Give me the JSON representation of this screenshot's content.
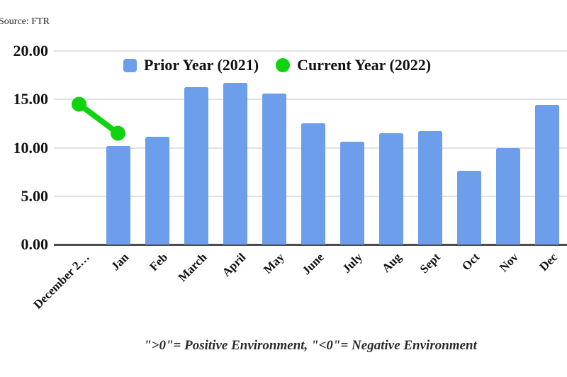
{
  "source_note": "Source: FTR",
  "legend": {
    "prior_label": "Prior Year (2021)",
    "current_label": "Current Year (2022)"
  },
  "caption": "\">0\"= Positive Environment, \"<0\"= Negative Environment",
  "colors": {
    "bar_blue": "#6d9eeb",
    "line_green": "#0fd30f",
    "gridline": "#e2e2e2",
    "axis_line": "#4c4c4c",
    "text": "#111111"
  },
  "chart_data": {
    "type": "bar",
    "title": "",
    "xlabel": "",
    "ylabel": "",
    "categories": [
      "December 2…",
      "Jan",
      "Feb",
      "March",
      "April",
      "May",
      "June",
      "July",
      "Aug",
      "Sept",
      "Oct",
      "Nov",
      "Dec"
    ],
    "series": [
      {
        "name": "Prior Year (2021)",
        "type": "bar",
        "color": "#6d9eeb",
        "values": [
          null,
          10.2,
          11.1,
          16.3,
          16.7,
          15.6,
          12.5,
          10.6,
          11.5,
          11.7,
          7.6,
          10.0,
          14.4
        ]
      },
      {
        "name": "Current Year (2022)",
        "type": "line",
        "color": "#0fd30f",
        "values": [
          14.5,
          11.5,
          null,
          null,
          null,
          null,
          null,
          null,
          null,
          null,
          null,
          null,
          null
        ]
      }
    ],
    "y_ticks": [
      {
        "value": 20,
        "label": "20.00"
      },
      {
        "value": 15,
        "label": "15.00"
      },
      {
        "value": 10,
        "label": "10.00"
      },
      {
        "value": 5,
        "label": "5.00"
      },
      {
        "value": 0,
        "label": "0.00"
      }
    ],
    "ylim": [
      0,
      20
    ],
    "grid": true,
    "legend_position": "top-center"
  }
}
